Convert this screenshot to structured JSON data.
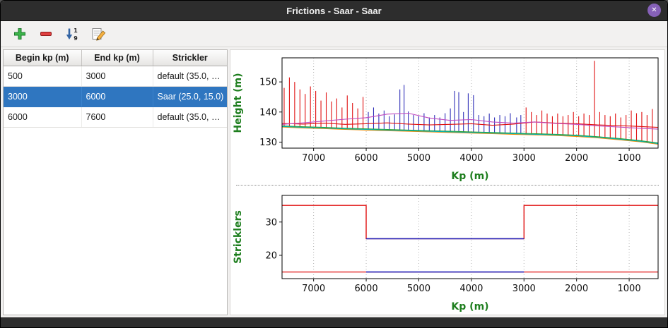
{
  "window": {
    "title": "Frictions - Saar - Saar",
    "close_icon": "✕"
  },
  "toolbar": {
    "add_tooltip": "Add",
    "remove_tooltip": "Remove",
    "sort_top": "1",
    "sort_bottom": "9"
  },
  "table": {
    "columns": [
      "Begin kp (m)",
      "End kp (m)",
      "Strickler"
    ],
    "rows": [
      {
        "begin": "500",
        "end": "3000",
        "strickler": "default (35.0, …",
        "selected": false
      },
      {
        "begin": "3000",
        "end": "6000",
        "strickler": "Saar (25.0, 15.0)",
        "selected": true
      },
      {
        "begin": "6000",
        "end": "7600",
        "strickler": "default (35.0, …",
        "selected": false
      }
    ],
    "selection_color": "#2f76c0"
  },
  "chart_data": [
    {
      "type": "line",
      "title": "",
      "xlabel": "Kp (m)",
      "ylabel": "Height (m)",
      "axis_label_color": "#1e7e1e",
      "xlim": [
        7600,
        450
      ],
      "ylim": [
        128,
        158
      ],
      "x_reversed": true,
      "xticks": [
        7000,
        6000,
        5000,
        4000,
        3000,
        2000,
        1000
      ],
      "yticks": [
        130,
        140,
        150
      ],
      "grid": "vertical-dotted",
      "lines_x": [
        7600,
        7200,
        6800,
        6400,
        6000,
        5600,
        5200,
        4800,
        4400,
        4000,
        3600,
        3200,
        2800,
        2400,
        2000,
        1600,
        1200,
        800,
        450
      ],
      "series": [
        {
          "name": "line-red",
          "color": "#e01010",
          "width": 1.1,
          "values": [
            136.2,
            136.0,
            136.3,
            135.9,
            136.1,
            136.4,
            136.0,
            135.7,
            135.9,
            136.1,
            135.6,
            136.0,
            136.7,
            136.3,
            136.1,
            135.7,
            135.5,
            135.2,
            134.9
          ]
        },
        {
          "name": "line-magenta",
          "color": "#c04ac0",
          "width": 1.1,
          "values": [
            135.9,
            136.4,
            137.0,
            137.6,
            138.1,
            139.3,
            139.6,
            138.0,
            137.2,
            137.5,
            136.7,
            136.3,
            136.7,
            136.2,
            135.9,
            135.4,
            135.0,
            134.6,
            134.3
          ]
        },
        {
          "name": "line-green",
          "color": "#2ca02c",
          "width": 1.1,
          "values": [
            135.4,
            135.1,
            134.9,
            134.6,
            134.4,
            134.2,
            134.0,
            133.8,
            133.6,
            133.4,
            133.2,
            133.0,
            132.8,
            132.6,
            132.3,
            131.8,
            131.2,
            130.5,
            129.7
          ]
        },
        {
          "name": "line-orange",
          "color": "#f08a00",
          "width": 1.1,
          "values": [
            135.0,
            134.7,
            134.5,
            134.2,
            134.0,
            133.8,
            133.6,
            133.4,
            133.2,
            133.0,
            132.8,
            132.6,
            132.4,
            132.2,
            131.9,
            131.4,
            130.8,
            130.1,
            129.3
          ]
        },
        {
          "name": "line-cyan",
          "color": "#00b2b2",
          "width": 1.1,
          "values": [
            135.2,
            134.9,
            134.7,
            134.4,
            134.2,
            134.0,
            133.8,
            133.6,
            133.4,
            133.2,
            133.0,
            132.8,
            132.6,
            132.4,
            132.1,
            131.6,
            131.0,
            130.3,
            129.5
          ]
        }
      ],
      "spikes": [
        {
          "name": "profiles-default",
          "color": "#e01010",
          "segments": [
            [
              7560,
              135.2,
              148.0
            ],
            [
              7460,
              135.1,
              151.5
            ],
            [
              7360,
              135.1,
              150.0
            ],
            [
              7260,
              135.0,
              147.5
            ],
            [
              7160,
              135.0,
              146.0
            ],
            [
              7060,
              134.9,
              148.5
            ],
            [
              6960,
              134.9,
              147.0
            ],
            [
              6860,
              134.8,
              143.8
            ],
            [
              6760,
              134.7,
              146.5
            ],
            [
              6660,
              134.7,
              143.5
            ],
            [
              6560,
              134.6,
              144.5
            ],
            [
              6460,
              134.6,
              141.5
            ],
            [
              6360,
              134.5,
              145.5
            ],
            [
              6260,
              134.5,
              143.0
            ],
            [
              6160,
              134.4,
              141.2
            ],
            [
              6060,
              134.4,
              145.0
            ],
            [
              2960,
              132.8,
              141.5
            ],
            [
              2860,
              132.8,
              140.0
            ],
            [
              2760,
              132.7,
              139.0
            ],
            [
              2660,
              132.7,
              140.5
            ],
            [
              2560,
              132.6,
              139.5
            ],
            [
              2460,
              132.6,
              138.6
            ],
            [
              2360,
              132.5,
              139.5
            ],
            [
              2260,
              132.5,
              138.6
            ],
            [
              2160,
              132.4,
              139.0
            ],
            [
              2060,
              132.3,
              140.0
            ],
            [
              1960,
              132.2,
              138.6
            ],
            [
              1860,
              132.1,
              139.5
            ],
            [
              1760,
              132.0,
              139.0
            ],
            [
              1660,
              131.9,
              157.0
            ],
            [
              1560,
              131.7,
              140.0
            ],
            [
              1460,
              131.5,
              139.0
            ],
            [
              1360,
              131.3,
              138.6
            ],
            [
              1260,
              131.1,
              139.5
            ],
            [
              1160,
              130.9,
              138.2
            ],
            [
              1060,
              130.7,
              139.0
            ],
            [
              960,
              130.6,
              140.5
            ],
            [
              860,
              130.4,
              139.6
            ],
            [
              760,
              130.2,
              140.0
            ],
            [
              660,
              130.1,
              139.0
            ],
            [
              560,
              129.9,
              141.0
            ]
          ]
        },
        {
          "name": "profiles-selected",
          "color": "#3030b8",
          "segments": [
            [
              5960,
              134.3,
              140.0
            ],
            [
              5860,
              134.3,
              141.5
            ],
            [
              5760,
              134.2,
              139.5
            ],
            [
              5660,
              134.2,
              140.5
            ],
            [
              5560,
              134.1,
              138.6
            ],
            [
              5460,
              134.1,
              139.2
            ],
            [
              5360,
              134.0,
              147.5
            ],
            [
              5280,
              134.0,
              149.0
            ],
            [
              5200,
              133.9,
              140.2
            ],
            [
              5100,
              133.9,
              139.0
            ],
            [
              5000,
              133.9,
              138.6
            ],
            [
              4900,
              133.8,
              139.6
            ],
            [
              4800,
              133.8,
              138.2
            ],
            [
              4700,
              133.7,
              139.0
            ],
            [
              4600,
              133.7,
              138.2
            ],
            [
              4500,
              133.6,
              139.6
            ],
            [
              4400,
              133.6,
              141.2
            ],
            [
              4320,
              133.5,
              147.0
            ],
            [
              4240,
              133.5,
              146.6
            ],
            [
              4150,
              133.4,
              140.0
            ],
            [
              4060,
              133.4,
              146.2
            ],
            [
              3960,
              133.3,
              145.6
            ],
            [
              3860,
              133.3,
              139.0
            ],
            [
              3760,
              133.2,
              138.6
            ],
            [
              3660,
              133.2,
              139.5
            ],
            [
              3560,
              133.1,
              138.2
            ],
            [
              3460,
              133.1,
              139.0
            ],
            [
              3360,
              133.0,
              138.6
            ],
            [
              3260,
              133.0,
              139.6
            ],
            [
              3140,
              132.9,
              138.2
            ],
            [
              3060,
              132.9,
              139.0
            ]
          ]
        }
      ]
    },
    {
      "type": "step",
      "title": "",
      "xlabel": "Kp (m)",
      "ylabel": "Stricklers",
      "axis_label_color": "#1e7e1e",
      "xlim": [
        7600,
        450
      ],
      "ylim": [
        13,
        38
      ],
      "x_reversed": true,
      "xticks": [
        7000,
        6000,
        5000,
        4000,
        3000,
        2000,
        1000
      ],
      "yticks": [
        20,
        30
      ],
      "grid": "vertical-dotted",
      "series": [
        {
          "name": "main-channel-strickler",
          "color": "#e01010",
          "width": 1.4,
          "points": [
            [
              7600,
              35
            ],
            [
              6000,
              35
            ],
            [
              6000,
              25
            ],
            [
              3000,
              25
            ],
            [
              3000,
              35
            ],
            [
              450,
              35
            ]
          ]
        },
        {
          "name": "floodplain-strickler",
          "color": "#e01010",
          "width": 1.2,
          "points": [
            [
              7600,
              15
            ],
            [
              450,
              15
            ]
          ]
        },
        {
          "name": "selected-zone-main",
          "color": "#2424bb",
          "width": 1.6,
          "points": [
            [
              6000,
              25
            ],
            [
              3000,
              25
            ]
          ]
        },
        {
          "name": "selected-zone-floodplain",
          "color": "#2424bb",
          "width": 1.6,
          "points": [
            [
              6000,
              15
            ],
            [
              3000,
              15
            ]
          ]
        }
      ]
    }
  ]
}
